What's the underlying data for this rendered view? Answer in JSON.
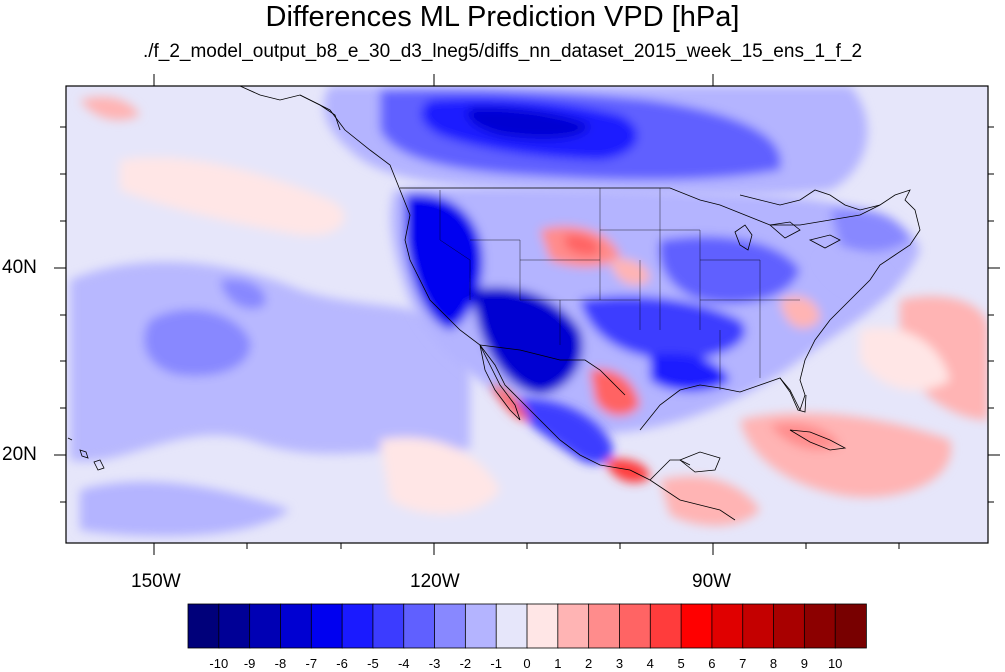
{
  "title": "Differences ML Prediction VPD [hPa]",
  "subtitle": "./f_2_model_output_b8_e_30_d3_lneg5/diffs_nn_dataset_2015_week_15_ens_1_f_2",
  "axes": {
    "lat_ticks": [
      {
        "value": 40,
        "label": "40N"
      },
      {
        "value": 20,
        "label": "20N"
      }
    ],
    "lon_ticks": [
      {
        "value": -150,
        "label": "150W"
      },
      {
        "value": -120,
        "label": "120W"
      },
      {
        "value": -90,
        "label": "90W"
      }
    ],
    "lon_range": [
      -160,
      -60
    ],
    "lat_range": [
      10,
      59
    ]
  },
  "colorbar": {
    "labels": [
      "-10",
      "-9",
      "-8",
      "-7",
      "-6",
      "-5",
      "-4",
      "-3",
      "-2",
      "-1",
      "0",
      "1",
      "2",
      "3",
      "4",
      "5",
      "6",
      "7",
      "8",
      "9",
      "10"
    ],
    "colors": [
      "#00007a",
      "#000096",
      "#0000b4",
      "#0000d2",
      "#0000f0",
      "#1a1aff",
      "#3c3cff",
      "#6060ff",
      "#8888ff",
      "#b4b4ff",
      "#e6e6fa",
      "#ffe6e6",
      "#ffb4b4",
      "#ff8c8c",
      "#ff6464",
      "#ff3c3c",
      "#ff0000",
      "#e00000",
      "#c40000",
      "#a80000",
      "#8c0000",
      "#780000"
    ]
  },
  "map": {
    "ocean_color": "#e6e6fa",
    "coastline_color": "#000000"
  }
}
